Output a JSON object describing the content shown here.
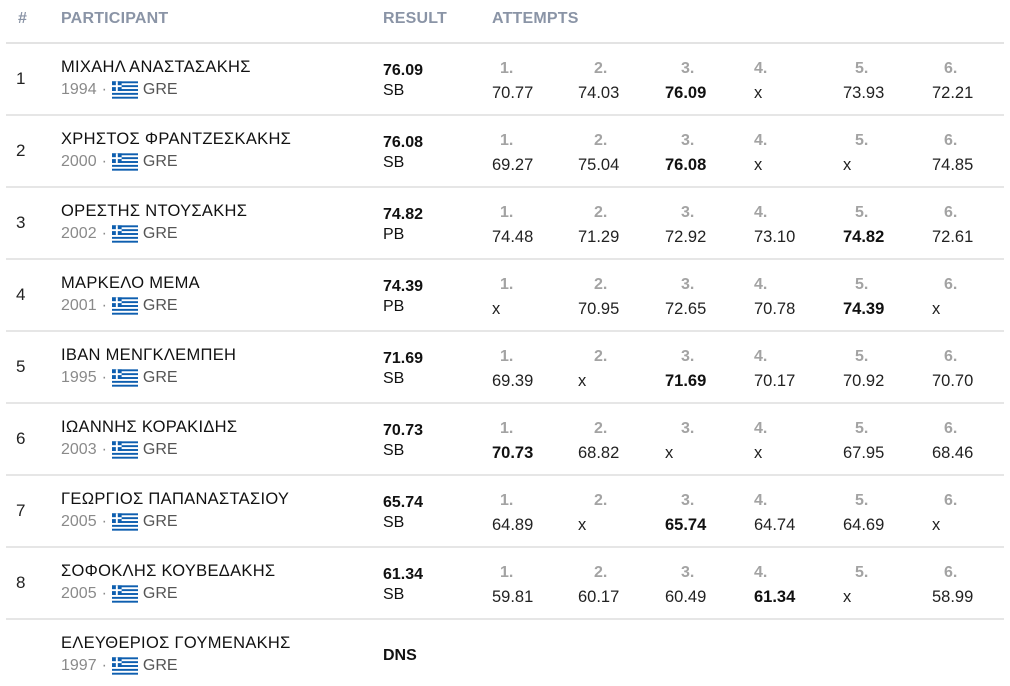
{
  "header": {
    "rank": "#",
    "participant": "PARTICIPANT",
    "result": "RESULT",
    "attempts": "ATTEMPTS"
  },
  "rows": [
    {
      "rank": "1",
      "name": "ΜΙΧΑΗΛ ΑΝΑΣΤΑΣΑΚΗΣ",
      "year": "1994",
      "country": "GRE",
      "result": "76.09",
      "note": "SB",
      "attempts": [
        {
          "n": "1.",
          "v": "70.77"
        },
        {
          "n": "2.",
          "v": "74.03"
        },
        {
          "n": "3.",
          "v": "76.09",
          "best": true
        },
        {
          "n": "4.",
          "v": "x"
        },
        {
          "n": "5.",
          "v": "73.93"
        },
        {
          "n": "6.",
          "v": "72.21"
        }
      ]
    },
    {
      "rank": "2",
      "name": "ΧΡΗΣΤΟΣ ΦΡΑΝΤΖΕΣΚΑΚΗΣ",
      "year": "2000",
      "country": "GRE",
      "result": "76.08",
      "note": "SB",
      "attempts": [
        {
          "n": "1.",
          "v": "69.27"
        },
        {
          "n": "2.",
          "v": "75.04"
        },
        {
          "n": "3.",
          "v": "76.08",
          "best": true
        },
        {
          "n": "4.",
          "v": "x"
        },
        {
          "n": "5.",
          "v": "x"
        },
        {
          "n": "6.",
          "v": "74.85"
        }
      ]
    },
    {
      "rank": "3",
      "name": "ΟΡΕΣΤΗΣ ΝΤΟΥΣΑΚΗΣ",
      "year": "2002",
      "country": "GRE",
      "result": "74.82",
      "note": "PB",
      "attempts": [
        {
          "n": "1.",
          "v": "74.48"
        },
        {
          "n": "2.",
          "v": "71.29"
        },
        {
          "n": "3.",
          "v": "72.92"
        },
        {
          "n": "4.",
          "v": "73.10"
        },
        {
          "n": "5.",
          "v": "74.82",
          "best": true
        },
        {
          "n": "6.",
          "v": "72.61"
        }
      ]
    },
    {
      "rank": "4",
      "name": "ΜΑΡΚΕΛΟ ΜΕΜΑ",
      "year": "2001",
      "country": "GRE",
      "result": "74.39",
      "note": "PB",
      "attempts": [
        {
          "n": "1.",
          "v": "x"
        },
        {
          "n": "2.",
          "v": "70.95"
        },
        {
          "n": "3.",
          "v": "72.65"
        },
        {
          "n": "4.",
          "v": "70.78"
        },
        {
          "n": "5.",
          "v": "74.39",
          "best": true
        },
        {
          "n": "6.",
          "v": "x"
        }
      ]
    },
    {
      "rank": "5",
      "name": "ΙΒΑΝ ΜΕΝΓΚΛΕΜΠΕΗ",
      "year": "1995",
      "country": "GRE",
      "result": "71.69",
      "note": "SB",
      "attempts": [
        {
          "n": "1.",
          "v": "69.39"
        },
        {
          "n": "2.",
          "v": "x"
        },
        {
          "n": "3.",
          "v": "71.69",
          "best": true
        },
        {
          "n": "4.",
          "v": "70.17"
        },
        {
          "n": "5.",
          "v": "70.92"
        },
        {
          "n": "6.",
          "v": "70.70"
        }
      ]
    },
    {
      "rank": "6",
      "name": "ΙΩΑΝΝΗΣ ΚΟΡΑΚΙΔΗΣ",
      "year": "2003",
      "country": "GRE",
      "result": "70.73",
      "note": "SB",
      "attempts": [
        {
          "n": "1.",
          "v": "70.73",
          "best": true
        },
        {
          "n": "2.",
          "v": "68.82"
        },
        {
          "n": "3.",
          "v": "x"
        },
        {
          "n": "4.",
          "v": "x"
        },
        {
          "n": "5.",
          "v": "67.95"
        },
        {
          "n": "6.",
          "v": "68.46"
        }
      ]
    },
    {
      "rank": "7",
      "name": "ΓΕΩΡΓΙΟΣ ΠΑΠΑΝΑΣΤΑΣΙΟΥ",
      "year": "2005",
      "country": "GRE",
      "result": "65.74",
      "note": "SB",
      "attempts": [
        {
          "n": "1.",
          "v": "64.89"
        },
        {
          "n": "2.",
          "v": "x"
        },
        {
          "n": "3.",
          "v": "65.74",
          "best": true
        },
        {
          "n": "4.",
          "v": "64.74"
        },
        {
          "n": "5.",
          "v": "64.69"
        },
        {
          "n": "6.",
          "v": "x"
        }
      ]
    },
    {
      "rank": "8",
      "name": "ΣΟΦΟΚΛΗΣ ΚΟΥΒΕΔΑΚΗΣ",
      "year": "2005",
      "country": "GRE",
      "result": "61.34",
      "note": "SB",
      "attempts": [
        {
          "n": "1.",
          "v": "59.81"
        },
        {
          "n": "2.",
          "v": "60.17"
        },
        {
          "n": "3.",
          "v": "60.49"
        },
        {
          "n": "4.",
          "v": "61.34",
          "best": true
        },
        {
          "n": "5.",
          "v": "x"
        },
        {
          "n": "6.",
          "v": "58.99"
        }
      ]
    },
    {
      "rank": "",
      "name": "ΕΛΕΥΘΕΡΙΟΣ ΓΟΥΜΕΝΑΚΗΣ",
      "year": "1997",
      "country": "GRE",
      "result": "DNS",
      "note": "",
      "attempts": []
    }
  ],
  "colors": {
    "header_text": "#8a94a6",
    "flag_blue": "#0d5eaf",
    "flag_white": "#ffffff"
  },
  "icons": {
    "flag": "greece-flag-icon"
  }
}
